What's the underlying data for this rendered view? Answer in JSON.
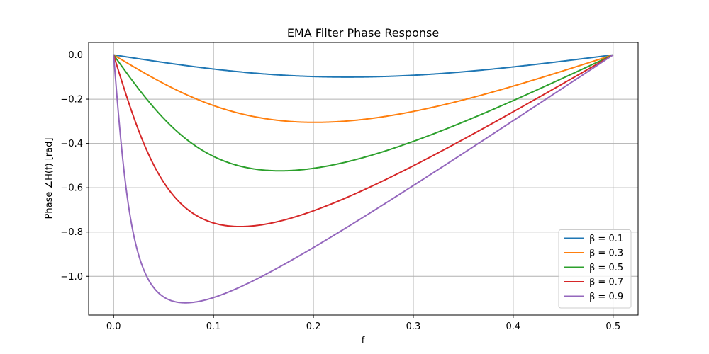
{
  "chart_data": {
    "type": "line",
    "title": "EMA Filter Phase Response",
    "xlabel": "f",
    "ylabel": "Phase ∠H(f) [rad]",
    "xlim": [
      -0.025,
      0.525
    ],
    "ylim": [
      -1.175,
      0.056
    ],
    "xticks": [
      0.0,
      0.1,
      0.2,
      0.3,
      0.4,
      0.5
    ],
    "xtick_labels": [
      "0.0",
      "0.1",
      "0.2",
      "0.3",
      "0.4",
      "0.5"
    ],
    "yticks": [
      0.0,
      -0.2,
      -0.4,
      -0.6,
      -0.8,
      -1.0
    ],
    "ytick_labels": [
      "0.0",
      "−0.2",
      "−0.4",
      "−0.6",
      "−0.8",
      "−1.0"
    ],
    "grid": true,
    "legend_position": "lower-right",
    "x_domain": [
      0,
      0.5
    ],
    "series": [
      {
        "name": "β = 0.1",
        "beta": 0.1,
        "color": "#1f77b4"
      },
      {
        "name": "β = 0.3",
        "beta": 0.3,
        "color": "#ff7f0e"
      },
      {
        "name": "β = 0.5",
        "beta": 0.5,
        "color": "#2ca02c"
      },
      {
        "name": "β = 0.7",
        "beta": 0.7,
        "color": "#d62728"
      },
      {
        "name": "β = 0.9",
        "beta": 0.9,
        "color": "#9467bd"
      }
    ]
  }
}
